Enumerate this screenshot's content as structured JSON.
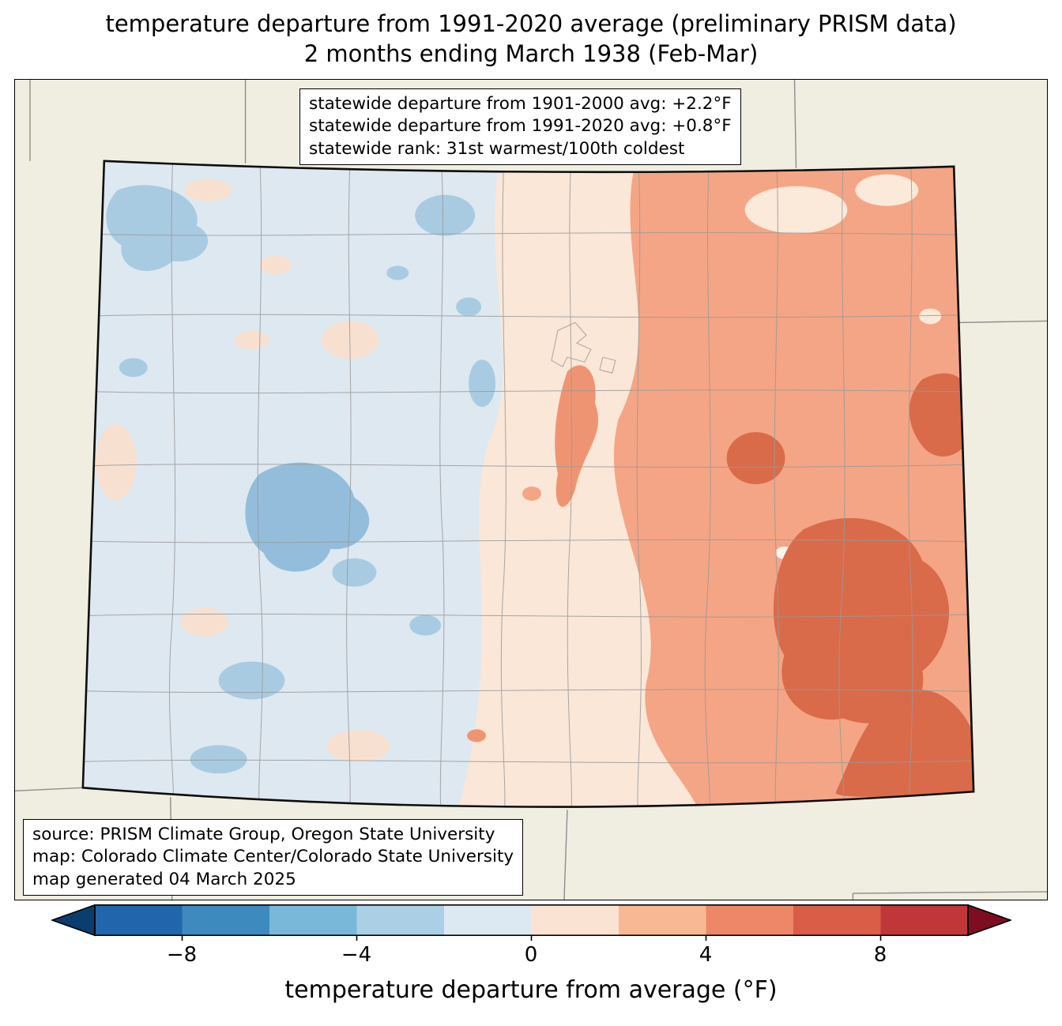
{
  "title": {
    "line1": "temperature departure from 1991-2020 average (preliminary PRISM data)",
    "line2": "2 months ending March 1938 (Feb-Mar)"
  },
  "stats_box": {
    "lines": [
      "statewide departure from 1901-2000 avg: +2.2°F",
      "statewide departure from 1991-2020 avg: +0.8°F",
      "statewide rank: 31st warmest/100th coldest"
    ]
  },
  "source_box": {
    "lines": [
      "source: PRISM Climate Group, Oregon State University",
      "map: Colorado Climate Center/Colorado State University",
      "map generated 04 March 2025"
    ]
  },
  "colorbar": {
    "label": "temperature departure from average (°F)",
    "ticks": [
      "−8",
      "−4",
      "0",
      "4",
      "8"
    ],
    "tick_values": [
      -8,
      -4,
      0,
      4,
      8
    ],
    "range": [
      -10,
      10
    ],
    "arrow_left_color": "#0b3d6e",
    "arrow_right_color": "#7f0d22",
    "segment_colors": [
      "#2166ac",
      "#3c8abe",
      "#7ab8d9",
      "#abd0e6",
      "#dce9f2",
      "#fbe3d4",
      "#f8b894",
      "#ee8767",
      "#da5d48",
      "#c13639"
    ]
  },
  "map": {
    "region": "Colorado",
    "palette": {
      "map-bg": "#efeee0",
      "state-base": "#dde8f1",
      "blue-blob": "#a9cbe2",
      "blue-blob-deep": "#93bddb",
      "cream": "#fae7d8",
      "pink-patch": "#f8e0d0",
      "salmon": "#f4a585",
      "salmon-deep": "#ef9472",
      "hot-blob": "#d96b4a",
      "pale-patch": "#fbe9da",
      "near-white": "#fdf3ea",
      "county-line": "#999999",
      "state-border": "#0d0d0d",
      "neighbor-line": "#8d8d8d"
    }
  }
}
